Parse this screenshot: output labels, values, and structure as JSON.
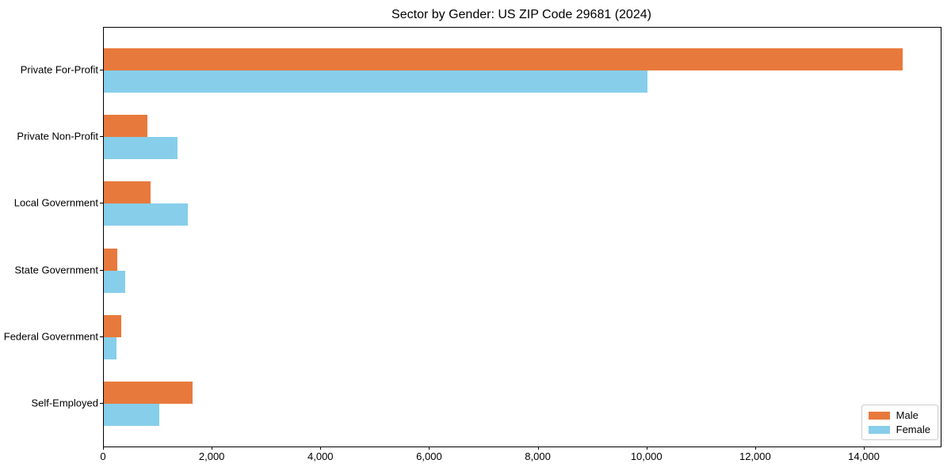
{
  "chart_data": {
    "type": "bar",
    "orientation": "horizontal",
    "title": "Sector by Gender: US ZIP Code 29681 (2024)",
    "categories": [
      "Private For-Profit",
      "Private Non-Profit",
      "Local Government",
      "State Government",
      "Federal Government",
      "Self-Employed"
    ],
    "series": [
      {
        "name": "Male",
        "color": "#E8793C",
        "values": [
          14700,
          800,
          860,
          250,
          320,
          1630
        ]
      },
      {
        "name": "Female",
        "color": "#87CEEB",
        "values": [
          10000,
          1350,
          1540,
          400,
          230,
          1020
        ]
      }
    ],
    "xlabel": "",
    "ylabel": "",
    "xlim": [
      0,
      15400
    ],
    "x_ticks": [
      0,
      2000,
      4000,
      6000,
      8000,
      10000,
      12000,
      14000
    ],
    "x_tick_labels": [
      "0",
      "2,000",
      "4,000",
      "6,000",
      "8,000",
      "10,000",
      "12,000",
      "14,000"
    ],
    "grid": false,
    "legend": {
      "position": "lower-right"
    }
  }
}
